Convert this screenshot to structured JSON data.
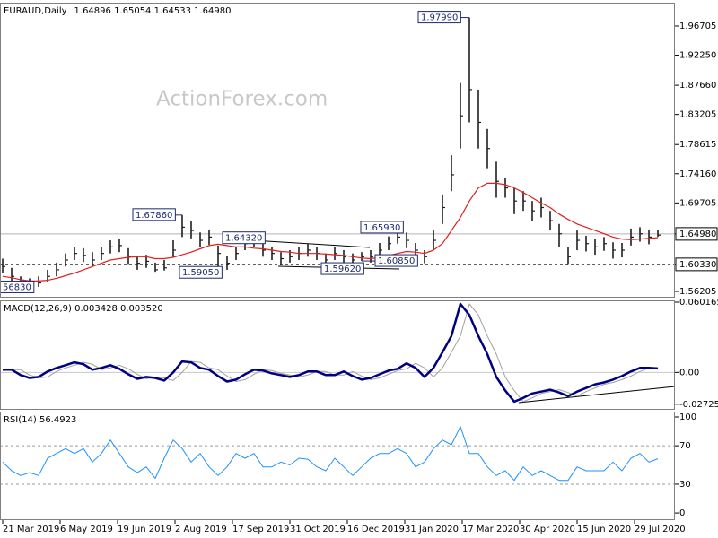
{
  "chart_data": [
    {
      "type": "ohlc",
      "title": "EURAUD,Daily",
      "subtitle": "1.64896 1.65054 1.64533 1.64980",
      "watermark": "ActionForex.com",
      "color": "#1f1f1f",
      "x": [
        0,
        5,
        10,
        15,
        20,
        25,
        30,
        35,
        40,
        45,
        50,
        55,
        60,
        65,
        70,
        75,
        80,
        85,
        90,
        95,
        100,
        105,
        110,
        115,
        120,
        125,
        130,
        135,
        140,
        145,
        150,
        155,
        160,
        165,
        170,
        175,
        180,
        185,
        190,
        195,
        200,
        205,
        210,
        215,
        220,
        225,
        230,
        235,
        240,
        245,
        250,
        255,
        260,
        265,
        270,
        275,
        280,
        285,
        290,
        295,
        300,
        305,
        310,
        315,
        320,
        325,
        330,
        335,
        340,
        345,
        350,
        355,
        360,
        365
      ],
      "high": [
        1.612,
        1.598,
        1.585,
        1.582,
        1.585,
        1.595,
        1.606,
        1.62,
        1.63,
        1.628,
        1.622,
        1.63,
        1.64,
        1.642,
        1.628,
        1.615,
        1.618,
        1.606,
        1.61,
        1.64,
        1.6786,
        1.67,
        1.652,
        1.656,
        1.632,
        1.616,
        1.63,
        1.642,
        1.6432,
        1.636,
        1.63,
        1.622,
        1.625,
        1.63,
        1.635,
        1.63,
        1.62,
        1.63,
        1.625,
        1.62,
        1.622,
        1.625,
        1.636,
        1.646,
        1.6593,
        1.652,
        1.636,
        1.625,
        1.655,
        1.71,
        1.77,
        1.88,
        1.9799,
        1.87,
        1.81,
        1.76,
        1.735,
        1.72,
        1.715,
        1.7,
        1.705,
        1.685,
        1.665,
        1.63,
        1.655,
        1.647,
        1.642,
        1.645,
        1.637,
        1.636,
        1.658,
        1.66,
        1.656,
        1.656
      ],
      "low": [
        1.59,
        1.575,
        1.569,
        1.5683,
        1.569,
        1.576,
        1.585,
        1.6,
        1.61,
        1.607,
        1.6,
        1.61,
        1.62,
        1.622,
        1.604,
        1.595,
        1.598,
        1.592,
        1.594,
        1.614,
        1.645,
        1.643,
        1.63,
        1.633,
        1.5905,
        1.595,
        1.61,
        1.625,
        1.63,
        1.615,
        1.61,
        1.603,
        1.606,
        1.61,
        1.615,
        1.61,
        1.5962,
        1.61,
        1.605,
        1.6,
        1.6085,
        1.606,
        1.615,
        1.625,
        1.635,
        1.628,
        1.613,
        1.605,
        1.625,
        1.665,
        1.715,
        1.78,
        1.82,
        1.78,
        1.75,
        1.705,
        1.705,
        1.68,
        1.685,
        1.67,
        1.675,
        1.655,
        1.63,
        1.604,
        1.625,
        1.623,
        1.618,
        1.624,
        1.612,
        1.614,
        1.632,
        1.638,
        1.634,
        1.6453
      ],
      "close": [
        1.6,
        1.585,
        1.575,
        1.572,
        1.575,
        1.585,
        1.595,
        1.61,
        1.62,
        1.617,
        1.61,
        1.62,
        1.63,
        1.632,
        1.615,
        1.605,
        1.608,
        1.595,
        1.598,
        1.625,
        1.66,
        1.655,
        1.64,
        1.645,
        1.62,
        1.605,
        1.62,
        1.635,
        1.64,
        1.625,
        1.62,
        1.612,
        1.615,
        1.62,
        1.625,
        1.62,
        1.61,
        1.62,
        1.615,
        1.61,
        1.615,
        1.615,
        1.625,
        1.635,
        1.645,
        1.64,
        1.625,
        1.615,
        1.64,
        1.69,
        1.74,
        1.83,
        1.87,
        1.82,
        1.78,
        1.73,
        1.72,
        1.7,
        1.7,
        1.685,
        1.69,
        1.67,
        1.65,
        1.615,
        1.64,
        1.635,
        1.63,
        1.635,
        1.625,
        1.625,
        1.645,
        1.65,
        1.645,
        1.648
      ],
      "series": [
        {
          "color": "#e0201c",
          "values": [
            1.585,
            1.583,
            1.58,
            1.578,
            1.578,
            1.579,
            1.582,
            1.586,
            1.59,
            1.595,
            1.6,
            1.605,
            1.61,
            1.612,
            1.614,
            1.615,
            1.615,
            1.612,
            1.612,
            1.614,
            1.618,
            1.622,
            1.627,
            1.632,
            1.634,
            1.632,
            1.63,
            1.63,
            1.628,
            1.627,
            1.625,
            1.623,
            1.622,
            1.62,
            1.62,
            1.62,
            1.619,
            1.618,
            1.617,
            1.615,
            1.613,
            1.612,
            1.614,
            1.617,
            1.62,
            1.623,
            1.622,
            1.62,
            1.625,
            1.635,
            1.655,
            1.675,
            1.7,
            1.72,
            1.727,
            1.727,
            1.725,
            1.72,
            1.713,
            1.705,
            1.697,
            1.69,
            1.68,
            1.672,
            1.665,
            1.66,
            1.655,
            1.65,
            1.645,
            1.642,
            1.641,
            1.642,
            1.643,
            1.644
          ]
        }
      ],
      "xlim": [
        0,
        374
      ],
      "ylim": [
        1.5525,
        2.0026
      ],
      "yticks": [
        1.96705,
        {
          "value": 1.9225,
          "label": "1.92250"
        },
        {
          "value": 1.8766,
          "label": "1.87660"
        },
        1.83205,
        1.78615,
        {
          "value": 1.7416,
          "label": "1.74160"
        },
        1.69705,
        {
          "value": 1.6498,
          "label": "1.64980"
        },
        {
          "value": 1.6033,
          "label": "1.60330"
        },
        1.56205
      ],
      "hlines": [
        {
          "value": 1.6498,
          "style": "solid",
          "color": "#b4b4b4",
          "boxed": true
        },
        {
          "value": 1.6033,
          "style": "dashed",
          "color": "#000000",
          "boxed": true
        }
      ],
      "annotations": [
        {
          "text": "1.67860",
          "x": 100,
          "y": 1.6786
        },
        {
          "text": "1.59050",
          "x": 120,
          "y": 1.5905
        },
        {
          "text": "1.64320",
          "x": 140,
          "y": 1.6432
        },
        {
          "text": "1.59620",
          "x": 180,
          "y": 1.5962
        },
        {
          "text": "1.60850",
          "x": 200,
          "y": 1.6085
        },
        {
          "text": "1.65930",
          "x": 220,
          "y": 1.6593
        },
        {
          "text": "1.97990",
          "x": 260,
          "y": 1.9799
        },
        {
          "text": "56830",
          "x": 15,
          "y": 1.5683
        }
      ]
    },
    {
      "type": "line",
      "title": "MACD(12,26,9) 0.003428 0.003520",
      "x": [
        0,
        5,
        10,
        15,
        20,
        25,
        30,
        35,
        40,
        45,
        50,
        55,
        60,
        65,
        70,
        75,
        80,
        85,
        90,
        95,
        100,
        105,
        110,
        115,
        120,
        125,
        130,
        135,
        140,
        145,
        150,
        155,
        160,
        165,
        170,
        175,
        180,
        185,
        190,
        195,
        200,
        205,
        210,
        215,
        220,
        225,
        230,
        235,
        240,
        245,
        250,
        255,
        260,
        265,
        270,
        275,
        280,
        285,
        290,
        295,
        300,
        305,
        310,
        315,
        320,
        325,
        330,
        335,
        340,
        345,
        350,
        355,
        360,
        365
      ],
      "series": [
        {
          "color": "#a0a0a0",
          "width": 1,
          "values": [
            0.0023,
            0.0023,
            0.0023,
            -0.0023,
            -0.0047,
            -0.0039,
            0.0008,
            0.0039,
            0.0062,
            0.0086,
            0.007,
            0.0023,
            0.0039,
            0.0062,
            0.0031,
            -0.0016,
            -0.0055,
            -0.0039,
            -0.0047,
            -0.007,
            0,
            0.0094,
            0.0086,
            0.0039,
            0.0023,
            -0.0031,
            -0.0078,
            -0.0062,
            -0.0016,
            0.0023,
            0.0016,
            -0.0008,
            -0.0023,
            -0.0039,
            -0.0023,
            0.0008,
            0.0008,
            -0.0023,
            -0.0023,
            0.0008,
            -0.0031,
            -0.0062,
            -0.0047,
            -0.0016,
            0.0016,
            0.0031,
            0.0078,
            0.0039,
            -0.0039,
            0.0039,
            0.0172,
            0.0312,
            0.0586,
            0.0492,
            0.0312,
            0.0156,
            -0.0039,
            -0.0156,
            -0.025,
            -0.0219,
            -0.018,
            -0.0164,
            -0.0148,
            -0.0172,
            -0.0203,
            -0.0164,
            -0.0133,
            -0.0102,
            -0.0086,
            -0.0062,
            -0.0031,
            0.0008,
            0.0039,
            0.0035
          ]
        },
        {
          "color": "#000080",
          "width": 2.5,
          "values": [
            0.0023,
            0.0023,
            -0.0023,
            -0.0047,
            -0.0039,
            0.0008,
            0.0039,
            0.0062,
            0.0086,
            0.007,
            0.0023,
            0.0039,
            0.0062,
            0.0031,
            -0.0016,
            -0.0055,
            -0.0039,
            -0.0047,
            -0.007,
            0,
            0.0094,
            0.0086,
            0.0039,
            0.0023,
            -0.0031,
            -0.0078,
            -0.0062,
            -0.0016,
            0.0023,
            0.0016,
            -0.0008,
            -0.0023,
            -0.0039,
            -0.0023,
            0.0008,
            0.0008,
            -0.0023,
            -0.0023,
            0.0008,
            -0.0031,
            -0.0062,
            -0.0047,
            -0.0016,
            0.0016,
            0.0031,
            0.0078,
            0.0039,
            -0.0039,
            0.0039,
            0.0172,
            0.0312,
            0.0586,
            0.0492,
            0.0312,
            0.0156,
            -0.0039,
            -0.0156,
            -0.025,
            -0.0219,
            -0.018,
            -0.0164,
            -0.0148,
            -0.0172,
            -0.0203,
            -0.0164,
            -0.0133,
            -0.0102,
            -0.0086,
            -0.0062,
            -0.0031,
            0.0008,
            0.0039,
            0.0039,
            0.0034
          ]
        }
      ],
      "xlim": [
        0,
        374
      ],
      "ylim": [
        -0.032,
        0.0617
      ],
      "yticks": [
        0.060165,
        {
          "value": 0,
          "label": "0.00"
        },
        -0.02725
      ],
      "hlines": [
        {
          "value": 0,
          "style": "solid",
          "color": "#c8c8c8",
          "boxed": false
        }
      ]
    },
    {
      "type": "line",
      "title": "RSI(14) 56.4923",
      "x": [
        0,
        5,
        10,
        15,
        20,
        25,
        30,
        35,
        40,
        45,
        50,
        55,
        60,
        65,
        70,
        75,
        80,
        85,
        90,
        95,
        100,
        105,
        110,
        115,
        120,
        125,
        130,
        135,
        140,
        145,
        150,
        155,
        160,
        165,
        170,
        175,
        180,
        185,
        190,
        195,
        200,
        205,
        210,
        215,
        220,
        225,
        230,
        235,
        240,
        245,
        250,
        255,
        260,
        265,
        270,
        275,
        280,
        285,
        290,
        295,
        300,
        305,
        310,
        315,
        320,
        325,
        330,
        335,
        340,
        345,
        350,
        355,
        360,
        365
      ],
      "series": [
        {
          "color": "#1e90ff",
          "width": 1,
          "values": [
            53,
            44,
            39,
            42,
            39,
            57,
            62,
            67,
            62,
            67,
            53,
            62,
            76,
            62,
            48,
            42,
            48,
            36,
            57,
            76,
            67,
            53,
            62,
            48,
            39,
            48,
            62,
            57,
            62,
            48,
            48,
            53,
            50,
            57,
            56,
            48,
            44,
            57,
            48,
            39,
            48,
            57,
            62,
            62,
            67,
            62,
            48,
            53,
            67,
            76,
            71,
            90,
            62,
            62,
            48,
            39,
            44,
            34,
            48,
            39,
            44,
            39,
            34,
            34,
            48,
            44,
            44,
            44,
            53,
            44,
            57,
            62,
            53,
            56.4923
          ]
        }
      ],
      "xlim": [
        0,
        374
      ],
      "ylim": [
        -7.4,
        105.6
      ],
      "yticks": [
        100,
        70,
        30,
        0
      ],
      "hlines": [
        {
          "value": 70,
          "style": "dashed",
          "color": "#9a9a9a",
          "boxed": false
        },
        {
          "value": 30,
          "style": "dashed",
          "color": "#9a9a9a",
          "boxed": false
        }
      ],
      "xticks": [
        {
          "value": 0,
          "label": "21 Mar 2019"
        },
        {
          "value": 32,
          "label": "6 May 2019"
        },
        {
          "value": 64,
          "label": "19 Jun 2019"
        },
        {
          "value": 96,
          "label": "2 Aug 2019"
        },
        {
          "value": 128,
          "label": "17 Sep 2019"
        },
        {
          "value": 160,
          "label": "31 Oct 2019"
        },
        {
          "value": 192,
          "label": "16 Dec 2019"
        },
        {
          "value": 224,
          "label": "31 Jan 2020"
        },
        {
          "value": 256,
          "label": "17 Mar 2020"
        },
        {
          "value": 288,
          "label": "30 Apr 2020"
        },
        {
          "value": 320,
          "label": "15 Jun 2020"
        },
        {
          "value": 352,
          "label": "29 Jul 2020"
        }
      ]
    }
  ]
}
